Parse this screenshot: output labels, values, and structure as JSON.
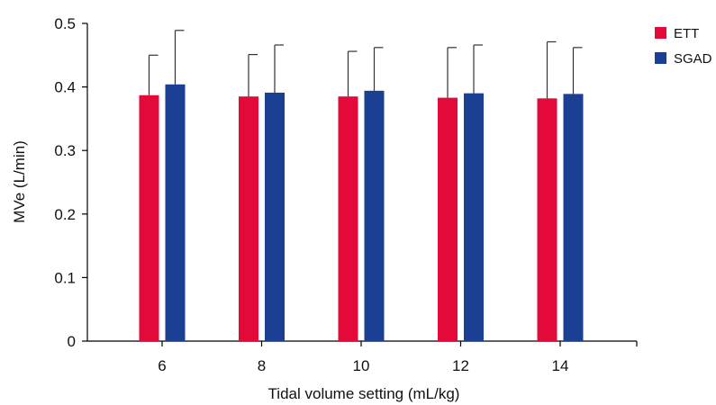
{
  "chart_data": {
    "type": "bar",
    "title": "",
    "xlabel": "Tidal volume setting (mL/kg)",
    "ylabel": "MVe (L/min)",
    "ylim": [
      0,
      0.5
    ],
    "yticks": [
      "0",
      "0.1",
      "0.2",
      "0.3",
      "0.4",
      "0.5"
    ],
    "yticks_values": [
      0,
      0.1,
      0.2,
      0.3,
      0.4,
      0.5
    ],
    "categories": [
      "6",
      "8",
      "10",
      "12",
      "14"
    ],
    "series": [
      {
        "name": "ETT",
        "color": "#E30A3A",
        "values": [
          0.387,
          0.385,
          0.385,
          0.383,
          0.382
        ],
        "error_upper": [
          0.45,
          0.451,
          0.456,
          0.462,
          0.471
        ]
      },
      {
        "name": "SGAD",
        "color": "#1A3F93",
        "values": [
          0.404,
          0.391,
          0.394,
          0.39,
          0.389
        ],
        "error_upper": [
          0.489,
          0.466,
          0.462,
          0.466,
          0.462
        ]
      }
    ],
    "grid": false,
    "legend_position": "top-right",
    "error_bars": "upper"
  }
}
